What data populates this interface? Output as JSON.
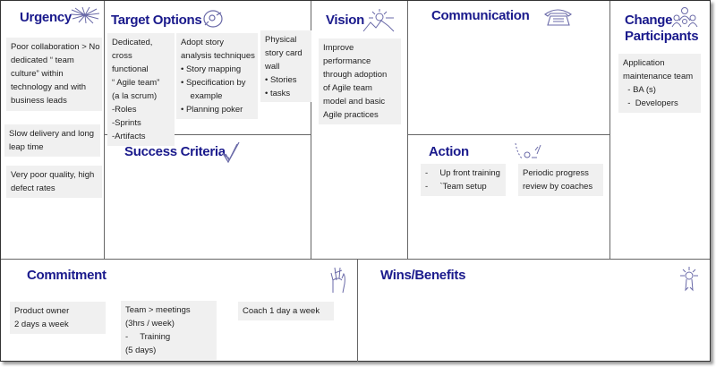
{
  "colors": {
    "title": "#1a1a8c",
    "note": "#f0f0f0",
    "line": "#666666",
    "icon": "#6a6aa8"
  },
  "urgency": {
    "title": "Urgency",
    "icon": "burst-icon",
    "notes": [
      [
        "Poor collaboration > No",
        "dedicated “ team",
        "culture”  within",
        "technology and with",
        "business leads"
      ],
      [
        "Slow delivery and long",
        "leap time"
      ],
      [
        "Very poor quality, high",
        "defect rates"
      ]
    ]
  },
  "target_options": {
    "title": "Target Options",
    "icon": "target-icon",
    "notes": [
      [
        "Dedicated,",
        "cross",
        "functional",
        "“ Agile team”",
        "(a la scrum)",
        "-Roles",
        "-Sprints",
        "-Artifacts"
      ],
      [
        "Adopt story",
        "analysis techniques",
        "•  Story mapping",
        "•  Specification by",
        "    example",
        "•  Planning poker"
      ],
      [
        "Physical",
        "story card",
        "wall",
        "•  Stories",
        "•  tasks"
      ]
    ]
  },
  "success_criteria": {
    "title": "Success Criteria",
    "icon": "checkmark-icon"
  },
  "vision": {
    "title": "Vision",
    "icon": "sun-mountain-icon",
    "notes": [
      [
        "Improve",
        "performance",
        "through adoption",
        "of Agile team",
        "model and basic",
        "Agile practices"
      ]
    ]
  },
  "communication": {
    "title": "Communication",
    "icon": "telephone-icon"
  },
  "action": {
    "title": "Action",
    "icon": "play-diagram-icon",
    "notes": [
      [
        "-     Up front training",
        "-     `Team setup"
      ],
      [
        "Periodic progress",
        "review by coaches"
      ]
    ]
  },
  "change_participants": {
    "title_line1": "Change",
    "title_line2": "Participants",
    "icon": "people-icon",
    "notes": [
      [
        "Application",
        "maintenance team",
        "  - BA (s)",
        "  -  Developers"
      ]
    ]
  },
  "commitment": {
    "title": "Commitment",
    "icon": "crossed-fingers-icon",
    "notes": [
      [
        "Product owner",
        "2 days a week"
      ],
      [
        "Team > meetings",
        "(3hrs / week)",
        "-     Training",
        "(5 days)"
      ],
      [
        "Coach 1 day a week"
      ]
    ]
  },
  "wins_benefits": {
    "title": "Wins/Benefits",
    "icon": "award-ribbon-icon"
  }
}
